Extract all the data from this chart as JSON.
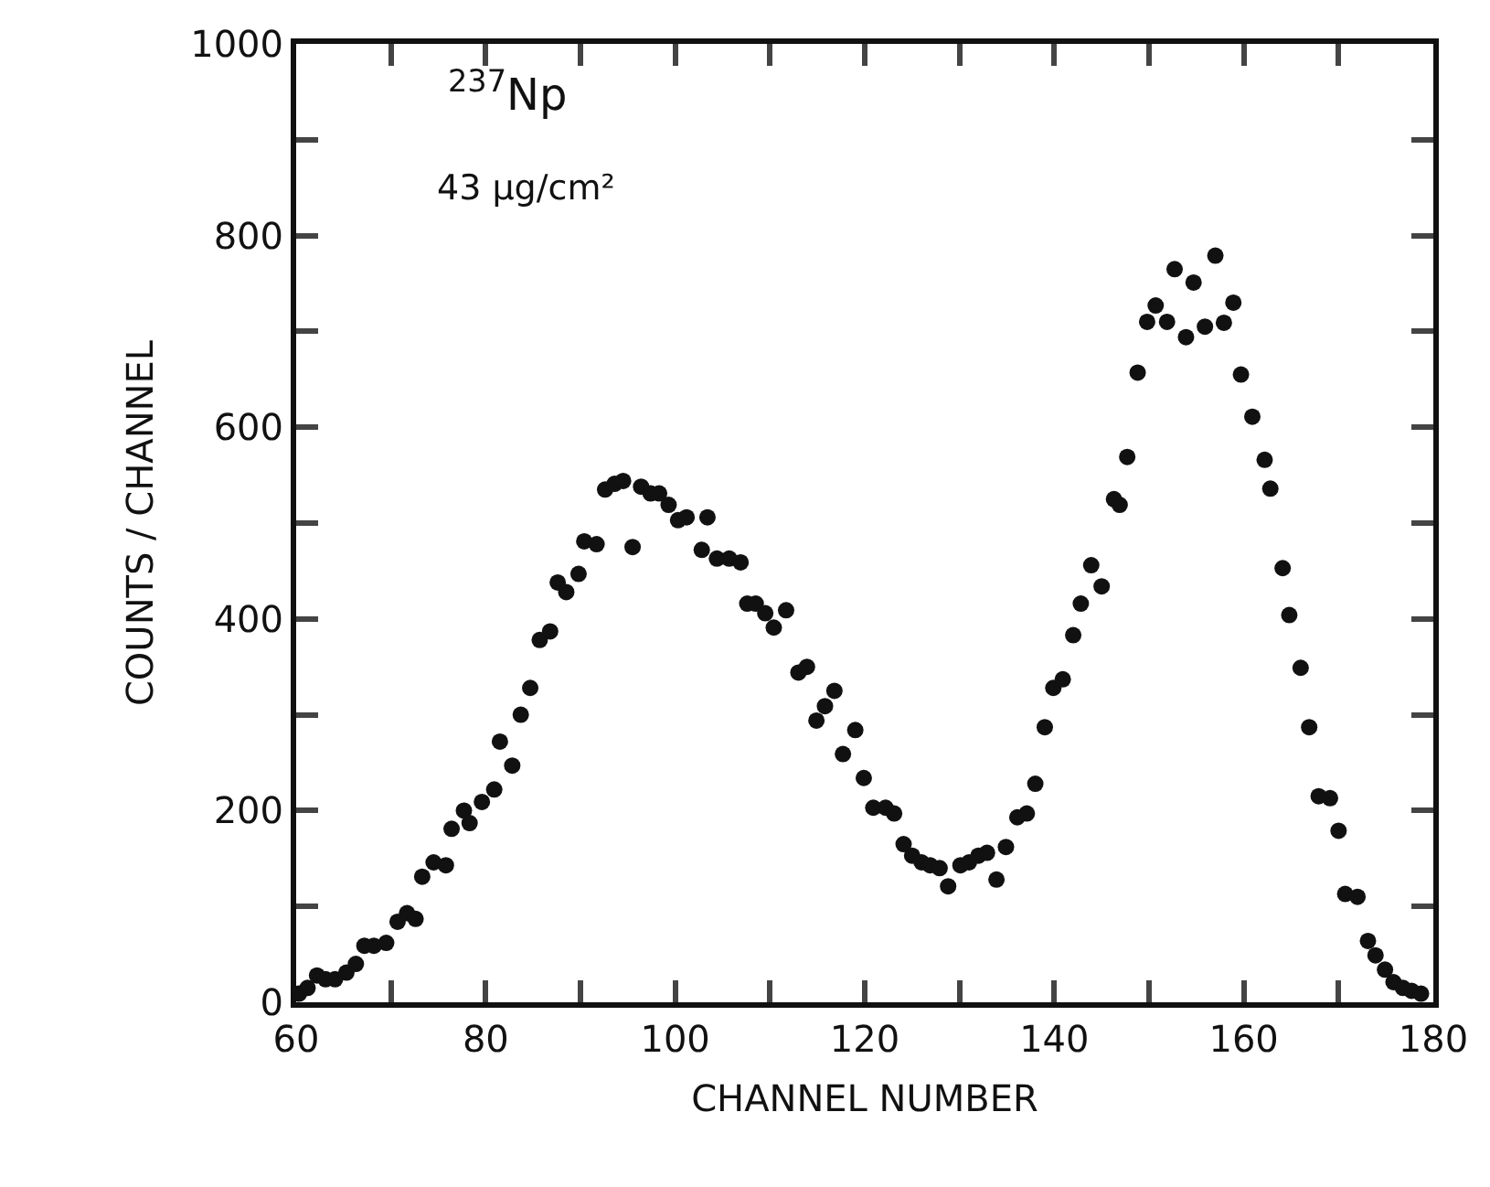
{
  "chart_data": {
    "type": "scatter",
    "xlabel": "CHANNEL NUMBER",
    "ylabel": "COUNTS / CHANNEL",
    "annotations": [
      "$^{237}$Np",
      "43 μg/cm²"
    ],
    "marker": "circle",
    "xlim": [
      60,
      180
    ],
    "ylim": [
      0,
      1000
    ],
    "xticks": [
      60,
      {
        "value": 70,
        "label": null
      },
      80,
      {
        "value": 90,
        "label": null
      },
      100,
      {
        "value": 110,
        "label": null
      },
      120,
      {
        "value": 130,
        "label": null
      },
      140,
      {
        "value": 150,
        "label": null
      },
      160,
      {
        "value": 170,
        "label": null
      },
      180
    ],
    "yticks": [
      0,
      {
        "value": 100,
        "label": null
      },
      200,
      {
        "value": 300,
        "label": null
      },
      400,
      {
        "value": 500,
        "label": null
      },
      600,
      {
        "value": 700,
        "label": null
      },
      800,
      {
        "value": 900,
        "label": null
      },
      1000
    ],
    "series": [
      {
        "color": "#111111",
        "x": [
          60.3,
          61.2,
          62.2,
          63.1,
          64.1,
          65.3,
          66.3,
          67.2,
          68.2,
          69.5,
          70.7,
          71.7,
          72.6,
          73.3,
          74.5,
          75.8,
          76.4,
          77.7,
          78.3,
          79.6,
          80.9,
          81.5,
          82.8,
          83.7,
          84.7,
          85.7,
          86.8,
          87.6,
          88.5,
          89.8,
          90.4,
          91.7,
          92.6,
          93.6,
          94.5,
          95.5,
          96.4,
          97.4,
          98.3,
          99.3,
          100.3,
          101.2,
          102.8,
          103.4,
          104.4,
          105.7,
          106.9,
          107.6,
          108.5,
          109.5,
          110.4,
          111.7,
          113.0,
          113.9,
          114.9,
          115.8,
          116.8,
          117.7,
          119.0,
          119.9,
          120.9,
          122.2,
          123.1,
          124.1,
          125.0,
          126.0,
          126.9,
          127.9,
          128.8,
          130.1,
          131.0,
          132.0,
          132.9,
          133.9,
          134.9,
          136.1,
          137.1,
          138.0,
          139.0,
          139.9,
          140.9,
          142.0,
          142.8,
          143.9,
          145.0,
          146.3,
          146.9,
          147.7,
          148.8,
          149.8,
          150.7,
          151.9,
          152.7,
          153.9,
          154.7,
          155.9,
          157.0,
          157.9,
          158.9,
          159.7,
          160.9,
          162.2,
          162.8,
          164.1,
          164.8,
          166.0,
          166.9,
          167.9,
          169.1,
          170.0,
          170.7,
          172.0,
          173.1,
          173.9,
          174.9,
          175.8,
          176.8,
          177.7,
          178.7
        ],
        "values": [
          9,
          15,
          28,
          24,
          24,
          31,
          40,
          59,
          59,
          62,
          84,
          93,
          87,
          131,
          146,
          143,
          181,
          200,
          187,
          209,
          222,
          272,
          247,
          300,
          328,
          378,
          387,
          438,
          428,
          447,
          481,
          478,
          535,
          541,
          544,
          475,
          538,
          531,
          531,
          519,
          503,
          506,
          472,
          506,
          463,
          463,
          459,
          416,
          416,
          406,
          391,
          409,
          344,
          350,
          294,
          309,
          325,
          259,
          284,
          234,
          203,
          203,
          197,
          165,
          153,
          146,
          143,
          140,
          121,
          143,
          146,
          153,
          156,
          128,
          162,
          193,
          197,
          228,
          287,
          328,
          337,
          383,
          416,
          456,
          434,
          525,
          519,
          569,
          657,
          710,
          727,
          710,
          765,
          694,
          751,
          705,
          779,
          709,
          730,
          655,
          611,
          566,
          536,
          453,
          404,
          349,
          287,
          215,
          213,
          179,
          113,
          110,
          64,
          49,
          34,
          21,
          15,
          12,
          9
        ]
      }
    ]
  }
}
